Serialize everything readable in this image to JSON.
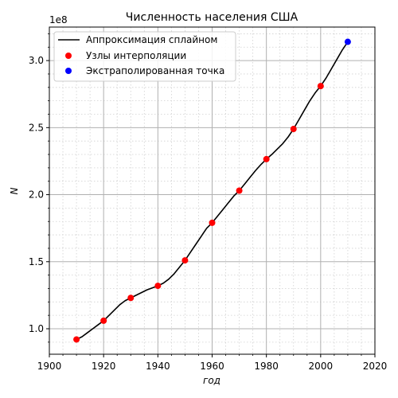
{
  "chart_data": {
    "type": "line",
    "title": "Численность населения США",
    "xlabel": "год",
    "ylabel": "N",
    "y_multiplier": "1e8",
    "xlim": [
      1900,
      2020
    ],
    "ylim": [
      0.81,
      3.25
    ],
    "y_unit_scale": 100000000,
    "x_ticks": [
      1900,
      1920,
      1940,
      1960,
      1980,
      2000,
      2020
    ],
    "y_ticks": [
      1.0,
      1.5,
      2.0,
      2.5,
      3.0
    ],
    "y_tick_labels": [
      "1.0",
      "1.5",
      "2.0",
      "2.5",
      "3.0"
    ],
    "grid": true,
    "minor_grid": true,
    "legend_position": "top-left",
    "series": [
      {
        "name": "Аппроксимация сплайном",
        "kind": "line",
        "color": "#000000",
        "x": [
          1910,
          1912,
          1914,
          1916,
          1918,
          1920,
          1922,
          1924,
          1926,
          1928,
          1930,
          1932,
          1934,
          1936,
          1938,
          1940,
          1942,
          1944,
          1946,
          1948,
          1950,
          1952,
          1954,
          1956,
          1958,
          1960,
          1962,
          1964,
          1966,
          1968,
          1970,
          1972,
          1974,
          1976,
          1978,
          1980,
          1982,
          1984,
          1986,
          1988,
          1990,
          1992,
          1994,
          1996,
          1998,
          2000,
          2002,
          2004,
          2006,
          2008,
          2010
        ],
        "y": [
          0.92,
          0.94,
          0.97,
          1.0,
          1.03,
          1.06,
          1.1,
          1.14,
          1.18,
          1.21,
          1.23,
          1.25,
          1.27,
          1.29,
          1.305,
          1.32,
          1.34,
          1.37,
          1.41,
          1.46,
          1.51,
          1.57,
          1.63,
          1.69,
          1.75,
          1.79,
          1.84,
          1.89,
          1.94,
          1.99,
          2.03,
          2.08,
          2.13,
          2.18,
          2.225,
          2.265,
          2.3,
          2.34,
          2.38,
          2.43,
          2.49,
          2.56,
          2.63,
          2.7,
          2.76,
          2.81,
          2.87,
          2.94,
          3.01,
          3.08,
          3.14
        ]
      },
      {
        "name": "Узлы интерполяции",
        "kind": "points",
        "color": "#ff0000",
        "x": [
          1910,
          1920,
          1930,
          1940,
          1950,
          1960,
          1970,
          1980,
          1990,
          2000
        ],
        "y": [
          0.92,
          1.06,
          1.23,
          1.32,
          1.51,
          1.79,
          2.03,
          2.265,
          2.49,
          2.81
        ]
      },
      {
        "name": "Экстраполированная точка",
        "kind": "points",
        "color": "#0000ff",
        "x": [
          2010
        ],
        "y": [
          3.14
        ]
      }
    ]
  }
}
